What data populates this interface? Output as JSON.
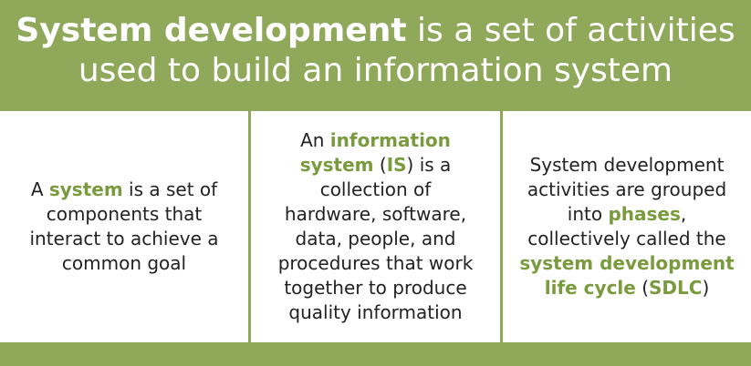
{
  "header": {
    "line1_bold": "System development",
    "line1_rest": " is a set of activities",
    "line2": "used to build an information system"
  },
  "columns": [
    {
      "lines": [
        [
          {
            "t": "A ",
            "h": false
          },
          {
            "t": "system",
            "h": true
          },
          {
            "t": " is a set of",
            "h": false
          }
        ],
        [
          {
            "t": "components that",
            "h": false
          }
        ],
        [
          {
            "t": "interact to achieve a",
            "h": false
          }
        ],
        [
          {
            "t": "common goal",
            "h": false
          }
        ]
      ]
    },
    {
      "lines": [
        [
          {
            "t": "An ",
            "h": false
          },
          {
            "t": "information",
            "h": true
          }
        ],
        [
          {
            "t": "system",
            "h": true
          },
          {
            "t": " (",
            "h": false
          },
          {
            "t": "IS",
            "h": true
          },
          {
            "t": ") is a",
            "h": false
          }
        ],
        [
          {
            "t": "collection of",
            "h": false
          }
        ],
        [
          {
            "t": "hardware, software,",
            "h": false
          }
        ],
        [
          {
            "t": "data, people, and",
            "h": false
          }
        ],
        [
          {
            "t": "procedures that work",
            "h": false
          }
        ],
        [
          {
            "t": "together to produce",
            "h": false
          }
        ],
        [
          {
            "t": "quality information",
            "h": false
          }
        ]
      ]
    },
    {
      "lines": [
        [
          {
            "t": "System development",
            "h": false
          }
        ],
        [
          {
            "t": "activities are grouped",
            "h": false
          }
        ],
        [
          {
            "t": "into ",
            "h": false
          },
          {
            "t": "phases",
            "h": true
          },
          {
            "t": ",",
            "h": false
          }
        ],
        [
          {
            "t": "collectively called the",
            "h": false
          }
        ],
        [
          {
            "t": "system development",
            "h": true
          }
        ],
        [
          {
            "t": "life cycle",
            "h": true
          },
          {
            "t": " (",
            "h": false
          },
          {
            "t": "SDLC",
            "h": true
          },
          {
            "t": ")",
            "h": false
          }
        ]
      ]
    }
  ],
  "colors": {
    "accent_green": "#8fa85a",
    "highlight_text": "#7a9a3e",
    "body_text": "#222222"
  }
}
